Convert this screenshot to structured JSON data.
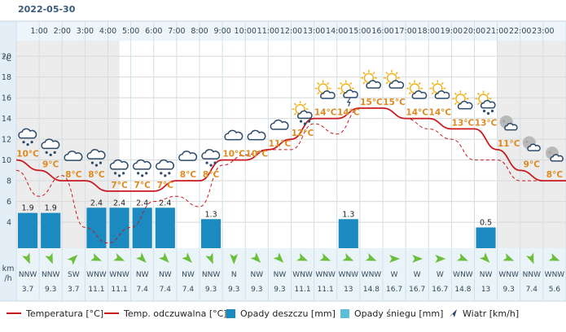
{
  "date": "2022-05-30",
  "chart_data": {
    "type": "bar+line",
    "hours": [
      "1:00",
      "2:00",
      "3:00",
      "4:00",
      "5:00",
      "6:00",
      "7:00",
      "8:00",
      "9:00",
      "10:00",
      "11:00",
      "12:00",
      "13:00",
      "14:00",
      "15:00",
      "16:00",
      "17:00",
      "18:00",
      "19:00",
      "20:00",
      "21:00",
      "22:00",
      "23:00"
    ],
    "y_unit": "°C",
    "y_ticks": [
      "20",
      "18",
      "16",
      "14",
      "12",
      "10",
      "8",
      "6",
      "4"
    ],
    "ylim": [
      1.5,
      21.5
    ],
    "temperature": [
      10,
      9,
      8,
      8,
      7,
      7,
      7,
      8,
      8,
      10,
      10,
      11,
      12,
      14,
      14,
      15,
      15,
      14,
      14,
      13,
      13,
      11,
      9,
      8
    ],
    "feels_like": [
      9,
      6.5,
      8.5,
      3.5,
      2,
      3.5,
      6,
      6.5,
      5.5,
      9.5,
      10.5,
      11,
      11,
      13.5,
      12.5,
      15,
      15,
      14,
      13,
      12,
      10,
      10,
      8,
      8
    ],
    "temp_labels": [
      "10°C",
      "9°C",
      "8°C",
      "8°C",
      "7°C",
      "7°C",
      "7°C",
      "8°C",
      "8°C",
      "10°C",
      "10°C",
      "11°C",
      "12°C",
      "14°C",
      "14°C",
      "15°C",
      "15°C",
      "14°C",
      "14°C",
      "13°C",
      "13°C",
      "11°C",
      "9°C",
      "8°C"
    ],
    "rain": [
      1.9,
      1.9,
      0,
      2.4,
      2.4,
      2.4,
      2.4,
      0,
      1.3,
      0,
      0,
      0,
      0,
      0,
      1.3,
      0,
      0,
      0,
      0,
      0,
      0.5,
      0,
      0,
      0
    ],
    "rain_labels": [
      "1.9",
      "1.9",
      "",
      "2.4",
      "2.4",
      "2.4",
      "2.4",
      "",
      "1.3",
      "",
      "",
      "",
      "",
      "",
      "1.3",
      "",
      "",
      "",
      "",
      "",
      "0.5",
      "",
      "",
      ""
    ],
    "weather_icons": [
      "cloud-rain-icon",
      "cloud-rain-icon",
      "cloud-icon",
      "cloud-rain-icon",
      "cloud-rain-icon",
      "cloud-rain-icon",
      "cloud-rain-icon",
      "cloud-icon",
      "cloud-rain-icon",
      "cloud-icon",
      "cloud-icon",
      "cloud-icon",
      "sun-cloud-rain-icon",
      "sun-cloud-icon",
      "sun-cloud-storm-icon",
      "sun-cloud-icon",
      "sun-cloud-icon",
      "sun-cloud-icon",
      "sun-cloud-icon",
      "sun-cloud-icon",
      "sun-cloud-rain-icon",
      "moon-cloud-icon",
      "moon-cloud-icon",
      "moon-cloud-icon"
    ],
    "wind_dir": [
      "NNW",
      "NNW",
      "SW",
      "WNW",
      "WNW",
      "NW",
      "NW",
      "NW",
      "NNW",
      "N",
      "NW",
      "NW",
      "WNW",
      "WNW",
      "WNW",
      "WNW",
      "W",
      "W",
      "W",
      "WNW",
      "NW",
      "WNW",
      "NNW",
      "WNW"
    ],
    "wind_speed": [
      "3.7",
      "9.3",
      "3.7",
      "11.1",
      "11.1",
      "7.4",
      "7.4",
      "7.4",
      "9.3",
      "9.3",
      "9.3",
      "9.3",
      "11.1",
      "11.1",
      "13",
      "14.8",
      "16.7",
      "16.7",
      "16.7",
      "14.8",
      "13",
      "9.3",
      "7.4",
      "5.6"
    ],
    "wind_unit_line1": "km",
    "wind_unit_line2": "/h",
    "legend": {
      "temperature": "Temperatura [°C]",
      "feels_like": "Temp. odczuwalna [°C]",
      "rain": "Opady deszczu [mm]",
      "snow": "Opady śniegu [mm]",
      "wind": "Wiatr [km/h]"
    },
    "colors": {
      "temperature": "#c8191f",
      "feels_like": "#c8191f",
      "rain": "#1a8ac0",
      "snow": "#5bbfd6",
      "temp_label": "#e08a1e",
      "wind_arrow": "#6cbf3c",
      "night_bg": "#ececec"
    }
  }
}
